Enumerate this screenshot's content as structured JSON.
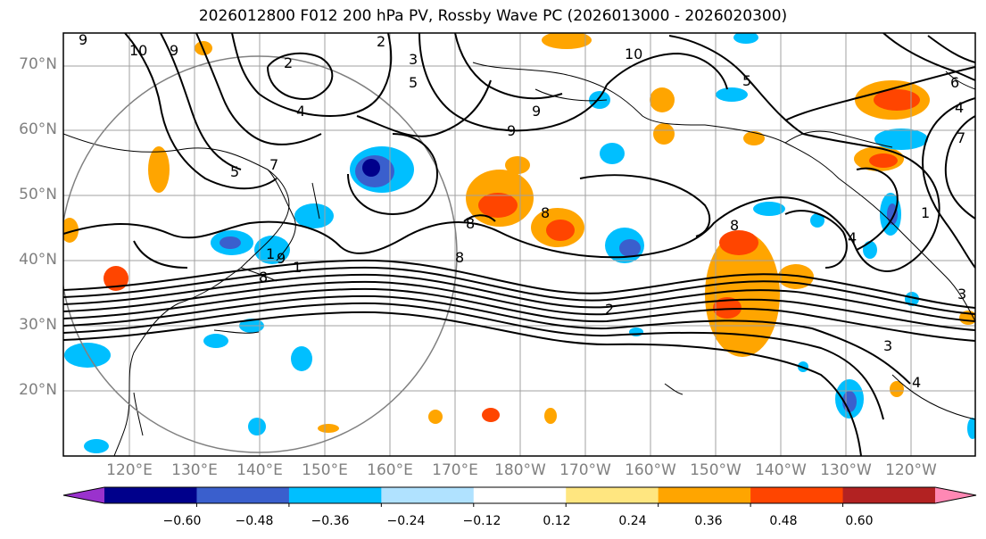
{
  "title": "2026012800 F012 200 hPa PV, Rossby Wave PC (2026013000 - 2026020300)",
  "lat_labels": [
    "70°N",
    "60°N",
    "50°N",
    "40°N",
    "30°N",
    "20°N"
  ],
  "lon_labels": [
    "120°E",
    "130°E",
    "140°E",
    "150°E",
    "160°E",
    "170°E",
    "180°W",
    "170°W",
    "160°W",
    "150°W",
    "140°W",
    "130°W",
    "120°W"
  ],
  "colorbar": {
    "ticks": [
      "−0.60",
      "−0.48",
      "−0.36",
      "−0.24",
      "−0.12",
      "0.12",
      "0.24",
      "0.36",
      "0.48",
      "0.60"
    ],
    "colors": [
      "#9a32cd",
      "#00008b",
      "#3a5fcd",
      "#00bfff",
      "#b0e2ff",
      "#ffffff",
      "#ffe680",
      "#ffa500",
      "#ff4500",
      "#b22222",
      "#ff88b4"
    ]
  },
  "contour_labels": [
    "9",
    "10",
    "9",
    "2",
    "3",
    "5",
    "10",
    "5",
    "9",
    "9",
    "4",
    "2",
    "7",
    "1",
    "4",
    "7",
    "6",
    "4",
    "8",
    "8",
    "8",
    "8",
    "9",
    "8",
    "1",
    "5",
    "2",
    "3",
    "4",
    "1",
    "3"
  ]
}
